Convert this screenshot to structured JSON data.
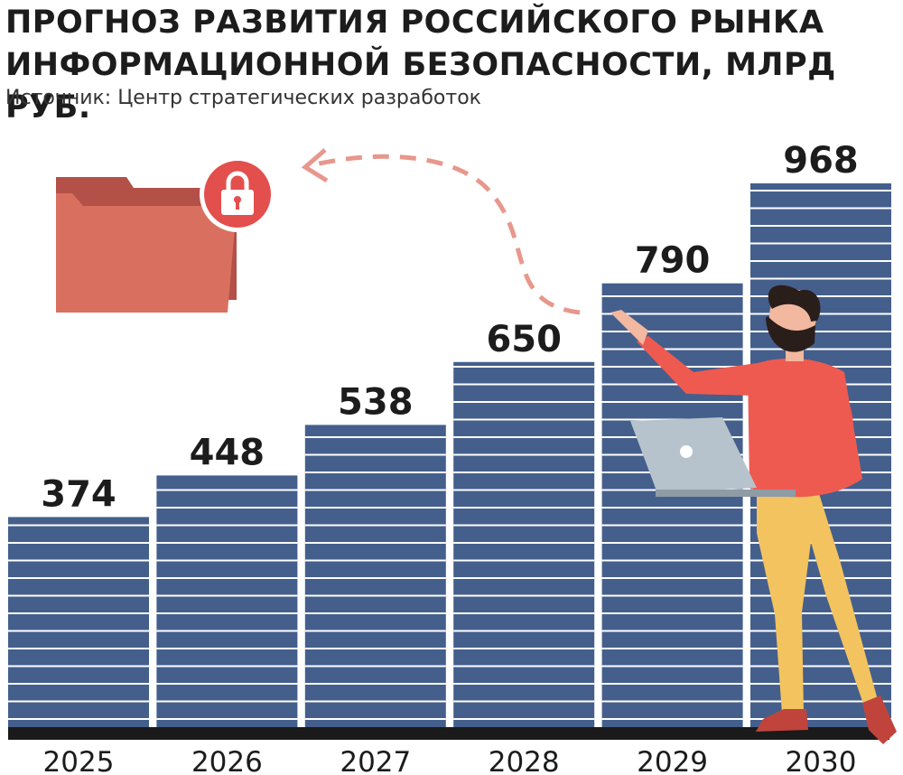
{
  "header": {
    "title_line1": "ПРОГНОЗ РАЗВИТИЯ РОССИЙСКОГО РЫНКА",
    "title_line2": "ИНФОРМАЦИОННОЙ БЕЗОПАСНОСТИ, МЛРД РУБ.",
    "source": "Источник: Центр стратегических разработок"
  },
  "colors": {
    "bar": "#445f8c",
    "bar_stripe": "#ffffff",
    "baseline": "#1a1a1a",
    "folder": "#d9705f",
    "folder_back": "#b35048",
    "lock_badge": "#e34f4c",
    "arrow": "#e8978c",
    "shirt": "#ef5a50",
    "pants": "#f3c35f",
    "laptop": "#b7c3cc"
  },
  "icons": [
    "folder-icon",
    "lock-icon",
    "dashed-arrow-icon",
    "person-illustration",
    "laptop-icon"
  ],
  "chart_data": {
    "type": "bar",
    "title": "ПРОГНОЗ РАЗВИТИЯ РОССИЙСКОГО РЫНКА ИНФОРМАЦИОННОЙ БЕЗОПАСНОСТИ, МЛРД РУБ.",
    "categories": [
      "2025",
      "2026",
      "2027",
      "2028",
      "2029",
      "2030"
    ],
    "values": [
      374,
      448,
      538,
      650,
      790,
      968
    ],
    "value_labels": [
      "374",
      "448",
      "538",
      "650",
      "790",
      "968"
    ],
    "ylim": [
      0,
      968
    ],
    "grid": false,
    "legend": "none"
  }
}
